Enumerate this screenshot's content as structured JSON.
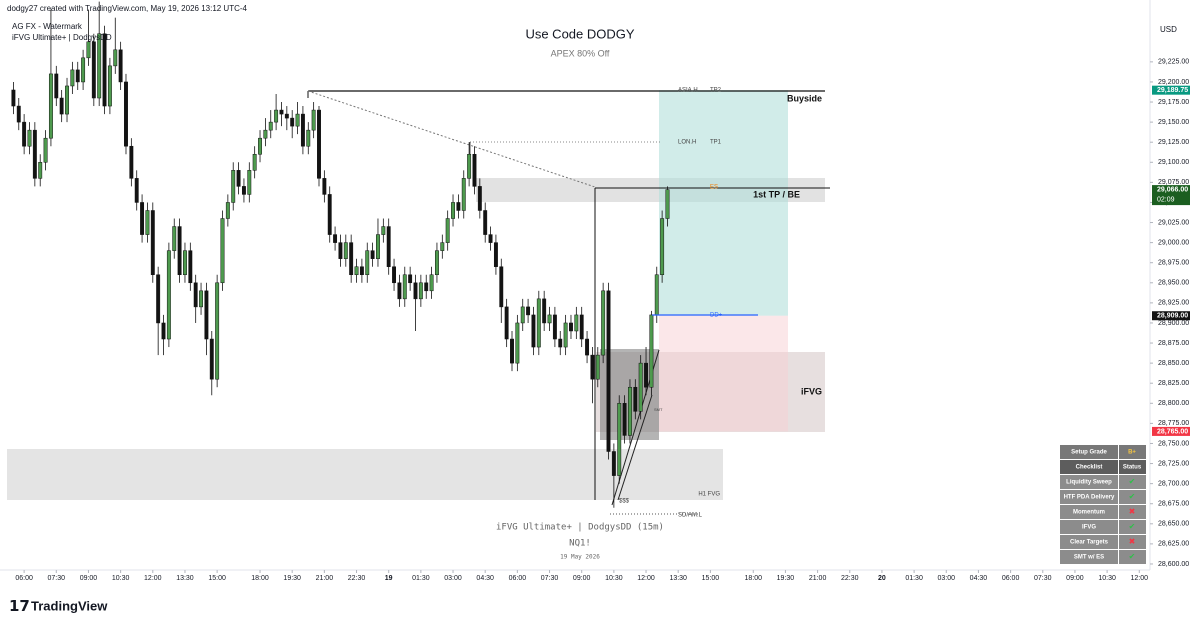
{
  "header": {
    "credit": "dodgy27 created with TradingView.com, May 19, 2026 13:12 UTC-4",
    "indicator_1": "AG FX - Watermark",
    "indicator_2": "iFVG Ultimate+ | DodgysDD",
    "currency": "USD"
  },
  "chart_data": {
    "type": "candlestick",
    "title": "Use Code DODGY",
    "subtitle": "APEX 80% Off",
    "watermark": [
      "iFVG Ultimate+ | DodgysDD (15m)",
      "NQ1!",
      "19 May 2026"
    ],
    "up_color": "#4e9a4e",
    "down_color": "#131313",
    "open": [
      29190,
      29170,
      29150,
      29120,
      29140,
      29080,
      29100,
      29130,
      29210,
      29180,
      29160,
      29195,
      29215,
      29200,
      29230,
      29250,
      29180,
      29260,
      29170,
      29220,
      29240,
      29200,
      29120,
      29080,
      29050,
      29010,
      29040,
      28960,
      28900,
      28880,
      28990,
      29020,
      28960,
      28990,
      28950,
      28920,
      28940,
      28880,
      28830,
      28950,
      29030,
      29050,
      29090,
      29070,
      29060,
      29090,
      29110,
      29130,
      29140,
      29150,
      29165,
      29160,
      29155,
      29145,
      29160,
      29120,
      29140,
      29165,
      29080,
      29060,
      29010,
      29000,
      28980,
      29000,
      28960,
      28970,
      28960,
      28990,
      28980,
      29010,
      29020,
      28970,
      28950,
      28930,
      28960,
      28950,
      28930,
      28950,
      28940,
      28960,
      28990,
      29000,
      29030,
      29050,
      29040,
      29080,
      29110,
      29070,
      29040,
      29010,
      29000,
      28970,
      28920,
      28880,
      28850,
      28900,
      28920,
      28910,
      28870,
      28930,
      28900,
      28910,
      28880,
      28870,
      28900,
      28890,
      28910,
      28880,
      28860,
      28830,
      28860,
      28940,
      28740,
      28710,
      28800,
      28760,
      28820,
      28790,
      28850,
      28820,
      28910,
      28960,
      29030
    ],
    "high": [
      29200,
      29180,
      29160,
      29150,
      29150,
      29110,
      29140,
      29290,
      29220,
      29190,
      29205,
      29225,
      29225,
      29240,
      29290,
      29260,
      29300,
      29270,
      29230,
      29280,
      29250,
      29210,
      29130,
      29090,
      29060,
      29050,
      29050,
      28970,
      28910,
      29000,
      29030,
      29030,
      29000,
      29000,
      28960,
      28950,
      28950,
      28890,
      28960,
      29040,
      29060,
      29100,
      29100,
      29080,
      29100,
      29120,
      29140,
      29155,
      29165,
      29185,
      29175,
      29170,
      29165,
      29175,
      29170,
      29150,
      29175,
      29170,
      29090,
      29070,
      29020,
      29010,
      29010,
      29010,
      28980,
      28980,
      29000,
      29000,
      29030,
      29030,
      29030,
      28980,
      28960,
      28970,
      28970,
      28960,
      28960,
      28960,
      28970,
      29000,
      29010,
      29040,
      29060,
      29060,
      29090,
      29125,
      29120,
      29080,
      29050,
      29020,
      29010,
      28980,
      28930,
      28890,
      28910,
      28930,
      28930,
      28920,
      28940,
      28940,
      28920,
      28920,
      28890,
      28910,
      28910,
      28920,
      28920,
      28890,
      28870,
      28870,
      28950,
      28950,
      28750,
      28810,
      28810,
      28830,
      28830,
      28860,
      28870,
      28915,
      28970,
      29040,
      29070
    ],
    "low": [
      29160,
      29140,
      29110,
      29110,
      29070,
      29070,
      29090,
      29120,
      29170,
      29150,
      29150,
      29185,
      29190,
      29190,
      29220,
      29170,
      29170,
      29160,
      29160,
      29210,
      29190,
      29110,
      29070,
      29040,
      29000,
      29000,
      28950,
      28860,
      28860,
      28870,
      28980,
      28950,
      28950,
      28940,
      28900,
      28910,
      28860,
      28810,
      28820,
      28940,
      29020,
      29040,
      29060,
      29050,
      29050,
      29080,
      29100,
      29120,
      29130,
      29140,
      29145,
      29140,
      29130,
      29135,
      29110,
      29110,
      29130,
      29070,
      29050,
      29000,
      28990,
      28970,
      28970,
      28950,
      28950,
      28950,
      28950,
      28970,
      28970,
      29000,
      28960,
      28940,
      28920,
      28920,
      28940,
      28890,
      28920,
      28930,
      28930,
      28950,
      28980,
      28990,
      29020,
      29030,
      29030,
      29070,
      29060,
      29030,
      29000,
      28990,
      28960,
      28900,
      28870,
      28840,
      28840,
      28890,
      28900,
      28860,
      28860,
      28890,
      28890,
      28870,
      28860,
      28860,
      28880,
      28880,
      28870,
      28850,
      28800,
      28820,
      28850,
      28730,
      28670,
      28700,
      28750,
      28750,
      28780,
      28780,
      28810,
      28810,
      28900,
      28950,
      29020
    ],
    "close": [
      29170,
      29150,
      29120,
      29140,
      29080,
      29100,
      29130,
      29210,
      29180,
      29160,
      29195,
      29215,
      29200,
      29230,
      29250,
      29180,
      29260,
      29170,
      29220,
      29240,
      29200,
      29120,
      29080,
      29050,
      29010,
      29040,
      28960,
      28900,
      28880,
      28990,
      29020,
      28960,
      28990,
      28950,
      28920,
      28940,
      28880,
      28830,
      28950,
      29030,
      29050,
      29090,
      29070,
      29060,
      29090,
      29110,
      29130,
      29140,
      29150,
      29165,
      29160,
      29155,
      29145,
      29160,
      29120,
      29140,
      29165,
      29080,
      29060,
      29010,
      29000,
      28980,
      29000,
      28960,
      28970,
      28960,
      28990,
      28980,
      29010,
      29020,
      28970,
      28950,
      28930,
      28960,
      28950,
      28930,
      28950,
      28940,
      28960,
      28990,
      29000,
      29030,
      29050,
      29040,
      29080,
      29110,
      29070,
      29040,
      29010,
      29000,
      28970,
      28920,
      28880,
      28850,
      28900,
      28920,
      28910,
      28870,
      28930,
      28900,
      28910,
      28880,
      28870,
      28900,
      28890,
      28910,
      28880,
      28860,
      28830,
      28860,
      28940,
      28740,
      28710,
      28800,
      28760,
      28820,
      28790,
      28850,
      28820,
      28910,
      28960,
      29030,
      29066
    ],
    "xlim": [
      -2.5,
      212
    ],
    "xticks": [
      {
        "value": 2,
        "label": "06:00"
      },
      {
        "value": 8,
        "label": "07:30"
      },
      {
        "value": 14,
        "label": "09:00"
      },
      {
        "value": 20,
        "label": "10:30"
      },
      {
        "value": 26,
        "label": "12:00"
      },
      {
        "value": 32,
        "label": "13:30"
      },
      {
        "value": 38,
        "label": "15:00"
      },
      {
        "value": 46,
        "label": "18:00"
      },
      {
        "value": 52,
        "label": "19:30"
      },
      {
        "value": 58,
        "label": "21:00"
      },
      {
        "value": 64,
        "label": "22:30"
      },
      {
        "value": 70,
        "label": "19"
      },
      {
        "value": 76,
        "label": "01:30"
      },
      {
        "value": 82,
        "label": "03:00"
      },
      {
        "value": 88,
        "label": "04:30"
      },
      {
        "value": 94,
        "label": "06:00"
      },
      {
        "value": 100,
        "label": "07:30"
      },
      {
        "value": 106,
        "label": "09:00"
      },
      {
        "value": 112,
        "label": "10:30"
      },
      {
        "value": 118,
        "label": "12:00"
      },
      {
        "value": 124,
        "label": "13:30"
      },
      {
        "value": 130,
        "label": "15:00"
      },
      {
        "value": 138,
        "label": "18:00"
      },
      {
        "value": 144,
        "label": "19:30"
      },
      {
        "value": 150,
        "label": "21:00"
      },
      {
        "value": 156,
        "label": "22:30"
      },
      {
        "value": 162,
        "label": "20"
      },
      {
        "value": 168,
        "label": "01:30"
      },
      {
        "value": 174,
        "label": "03:00"
      },
      {
        "value": 180,
        "label": "04:30"
      },
      {
        "value": 186,
        "label": "06:00"
      },
      {
        "value": 192,
        "label": "07:30"
      },
      {
        "value": 198,
        "label": "09:00"
      },
      {
        "value": 204,
        "label": "10:30"
      },
      {
        "value": 210,
        "label": "12:00"
      }
    ],
    "ylim": [
      28592.5,
      29302
    ],
    "yticks": [
      {
        "value": 29225,
        "label": "29,225.00"
      },
      {
        "value": 29200,
        "label": "29,200.00"
      },
      {
        "value": 29175,
        "label": "29,175.00"
      },
      {
        "value": 29150,
        "label": "29,150.00"
      },
      {
        "value": 29125,
        "label": "29,125.00"
      },
      {
        "value": 29100,
        "label": "29,100.00"
      },
      {
        "value": 29075,
        "label": "29,075.00"
      },
      {
        "value": 29050,
        "label": "29,050.00"
      },
      {
        "value": 29025,
        "label": "29,025.00"
      },
      {
        "value": 29000,
        "label": "29,000.00"
      },
      {
        "value": 28975,
        "label": "28,975.00"
      },
      {
        "value": 28950,
        "label": "28,950.00"
      },
      {
        "value": 28925,
        "label": "28,925.00"
      },
      {
        "value": 28900,
        "label": "28,900.00"
      },
      {
        "value": 28875,
        "label": "28,875.00"
      },
      {
        "value": 28850,
        "label": "28,850.00"
      },
      {
        "value": 28825,
        "label": "28,825.00"
      },
      {
        "value": 28800,
        "label": "28,800.00"
      },
      {
        "value": 28775,
        "label": "28,775.00"
      },
      {
        "value": 28750,
        "label": "28,750.00"
      },
      {
        "value": 28725,
        "label": "28,725.00"
      },
      {
        "value": 28700,
        "label": "28,700.00"
      },
      {
        "value": 28675,
        "label": "28,675.00"
      },
      {
        "value": 28650,
        "label": "28,650.00"
      },
      {
        "value": 28625,
        "label": "28,625.00"
      },
      {
        "value": 28600,
        "label": "28,600.00"
      }
    ],
    "price_markers": [
      {
        "value": 29189.75,
        "label": "29,189.75",
        "color": "#089981"
      },
      {
        "value": 29066,
        "label": "29,066.00",
        "countdown": "02:09",
        "color": "#1b5e20"
      },
      {
        "value": 28909,
        "label": "28,909.00",
        "color": "#131313"
      },
      {
        "value": 28765,
        "label": "28,765.00",
        "color": "#f23645"
      }
    ],
    "annotations": {
      "buyside": "Buyside",
      "first_tp": "1st TP / BE",
      "ifvg": "iFVG",
      "h1_fvg": "H1 FVG",
      "lon_h": "LON.H",
      "tp1": "TP1",
      "asia_h": "ASIA.H",
      "tp2": "TP2",
      "es": "ES",
      "dd": "DD+",
      "smt": "SMT",
      "liquidity": "$$$",
      "sd_am_l": "SD/AM.L"
    }
  },
  "checklist": {
    "grade_label": "Setup Grade",
    "grade": "B+",
    "headers": [
      "Checklist",
      "Status"
    ],
    "rows": [
      [
        "Liquidity Sweep",
        "✔"
      ],
      [
        "HTF PDA Delivery",
        "✔"
      ],
      [
        "Momentum",
        "✖"
      ],
      [
        "IFVG",
        "✔"
      ],
      [
        "Clear Targets",
        "✖"
      ],
      [
        "SMT w/ ES",
        "✔"
      ]
    ]
  },
  "footer": {
    "brand": "TradingView"
  }
}
